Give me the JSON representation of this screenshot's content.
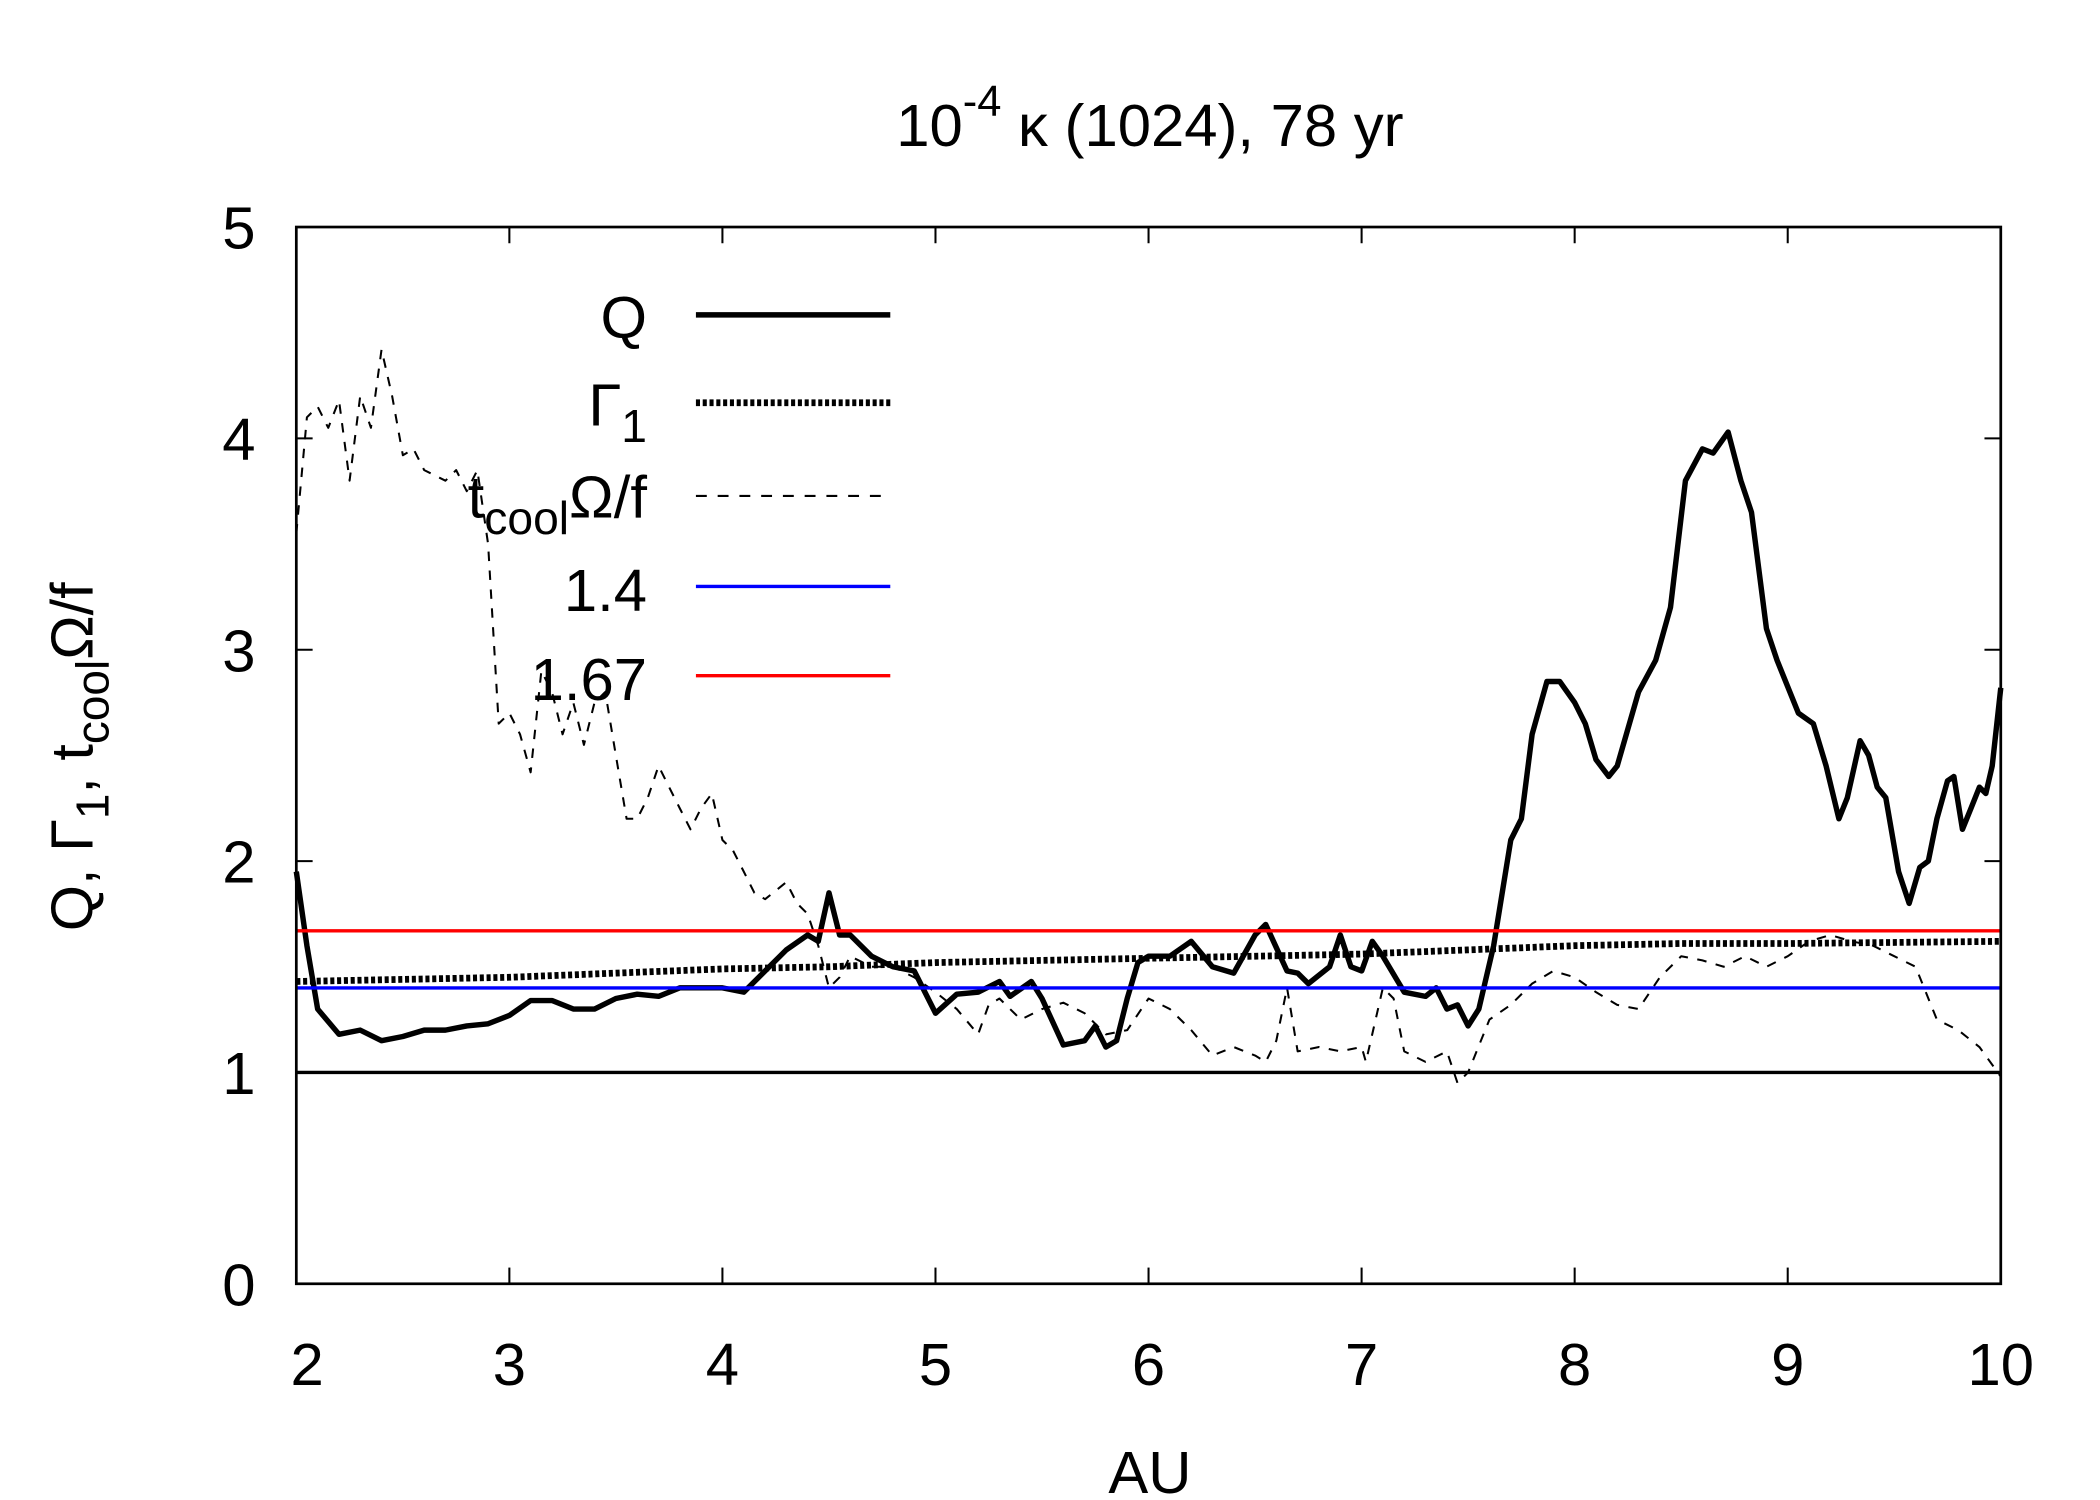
{
  "chart_data": {
    "type": "line",
    "title": {
      "base": "10",
      "sup": "-4",
      "rest": " κ (1024), 78 yr"
    },
    "xlabel": "AU",
    "ylabel": {
      "p1": "Q, Γ",
      "s1": "1",
      "p2": ", t",
      "s2": "cool",
      "p3": "Ω/f"
    },
    "xlim": [
      2,
      10
    ],
    "ylim": [
      0,
      5
    ],
    "xticks": [
      "2",
      "3",
      "4",
      "5",
      "6",
      "7",
      "8",
      "9",
      "10"
    ],
    "yticks": [
      "0",
      "1",
      "2",
      "3",
      "4",
      "5"
    ],
    "grid": false,
    "legend_position": "top-left",
    "legend": [
      {
        "label": "Q"
      },
      {
        "label": "Γ",
        "sub": "1"
      },
      {
        "label": "t",
        "sub": "cool",
        "after": "Ω/f"
      },
      {
        "label": "1.4"
      },
      {
        "label": "1.67"
      }
    ],
    "colors": {
      "Q": "#000000",
      "gamma": "#000000",
      "tcool": "#000000",
      "h14": "#0000ff",
      "h167": "#ff0000",
      "h1": "#000000"
    },
    "series": [
      {
        "name": "Q",
        "style": "solid-thick",
        "x": [
          2,
          2.05,
          2.1,
          2.2,
          2.3,
          2.4,
          2.5,
          2.6,
          2.7,
          2.8,
          2.9,
          3.0,
          3.1,
          3.2,
          3.3,
          3.4,
          3.5,
          3.6,
          3.7,
          3.8,
          3.9,
          4.0,
          4.1,
          4.2,
          4.3,
          4.4,
          4.45,
          4.5,
          4.55,
          4.6,
          4.7,
          4.8,
          4.9,
          5.0,
          5.1,
          5.2,
          5.3,
          5.35,
          5.45,
          5.5,
          5.6,
          5.7,
          5.75,
          5.8,
          5.85,
          5.9,
          5.95,
          6.0,
          6.1,
          6.2,
          6.3,
          6.4,
          6.5,
          6.55,
          6.65,
          6.7,
          6.75,
          6.85,
          6.9,
          6.95,
          7.0,
          7.05,
          7.1,
          7.2,
          7.3,
          7.35,
          7.4,
          7.45,
          7.5,
          7.55,
          7.62,
          7.7,
          7.75,
          7.8,
          7.87,
          7.93,
          8.0,
          8.05,
          8.1,
          8.16,
          8.2,
          8.3,
          8.38,
          8.45,
          8.52,
          8.6,
          8.65,
          8.72,
          8.78,
          8.83,
          8.9,
          8.95,
          9.05,
          9.12,
          9.18,
          9.24,
          9.28,
          9.34,
          9.38,
          9.42,
          9.46,
          9.52,
          9.57,
          9.62,
          9.66,
          9.7,
          9.75,
          9.78,
          9.82,
          9.86,
          9.9,
          9.93,
          9.96,
          10.0
        ],
        "y": [
          1.95,
          1.6,
          1.3,
          1.18,
          1.2,
          1.15,
          1.17,
          1.2,
          1.2,
          1.22,
          1.23,
          1.27,
          1.34,
          1.34,
          1.3,
          1.3,
          1.35,
          1.37,
          1.36,
          1.4,
          1.4,
          1.4,
          1.38,
          1.48,
          1.58,
          1.65,
          1.62,
          1.85,
          1.65,
          1.65,
          1.55,
          1.5,
          1.48,
          1.28,
          1.37,
          1.38,
          1.43,
          1.36,
          1.43,
          1.35,
          1.13,
          1.15,
          1.22,
          1.12,
          1.15,
          1.35,
          1.52,
          1.55,
          1.55,
          1.62,
          1.5,
          1.47,
          1.65,
          1.7,
          1.48,
          1.47,
          1.42,
          1.5,
          1.65,
          1.5,
          1.48,
          1.62,
          1.55,
          1.38,
          1.36,
          1.4,
          1.3,
          1.32,
          1.22,
          1.3,
          1.6,
          2.1,
          2.2,
          2.6,
          2.85,
          2.85,
          2.75,
          2.65,
          2.48,
          2.4,
          2.45,
          2.8,
          2.95,
          3.2,
          3.8,
          3.95,
          3.93,
          4.03,
          3.8,
          3.65,
          3.1,
          2.95,
          2.7,
          2.65,
          2.45,
          2.2,
          2.3,
          2.57,
          2.5,
          2.35,
          2.3,
          1.95,
          1.8,
          1.97,
          2.0,
          2.2,
          2.38,
          2.4,
          2.15,
          2.25,
          2.35,
          2.32,
          2.45,
          2.82
        ]
      },
      {
        "name": "Gamma1",
        "style": "dotted-thick",
        "x": [
          2,
          3,
          4,
          4.5,
          5,
          6,
          6.5,
          7,
          7.5,
          8,
          8.5,
          9,
          10
        ],
        "y": [
          1.43,
          1.45,
          1.49,
          1.5,
          1.52,
          1.54,
          1.55,
          1.56,
          1.58,
          1.6,
          1.61,
          1.61,
          1.62
        ]
      },
      {
        "name": "tcoolOmega/f",
        "style": "dashed-thin",
        "x": [
          2,
          2.05,
          2.1,
          2.15,
          2.2,
          2.25,
          2.3,
          2.35,
          2.4,
          2.45,
          2.5,
          2.55,
          2.6,
          2.7,
          2.75,
          2.8,
          2.85,
          2.9,
          2.95,
          3.0,
          3.05,
          3.1,
          3.15,
          3.2,
          3.25,
          3.3,
          3.35,
          3.4,
          3.45,
          3.5,
          3.55,
          3.6,
          3.65,
          3.7,
          3.75,
          3.8,
          3.85,
          3.9,
          3.95,
          4.0,
          4.05,
          4.1,
          4.15,
          4.2,
          4.3,
          4.35,
          4.4,
          4.45,
          4.5,
          4.55,
          4.6,
          4.7,
          4.8,
          4.9,
          5.0,
          5.1,
          5.2,
          5.25,
          5.3,
          5.4,
          5.5,
          5.6,
          5.7,
          5.8,
          5.9,
          6.0,
          6.1,
          6.2,
          6.3,
          6.4,
          6.5,
          6.55,
          6.6,
          6.65,
          6.7,
          6.8,
          6.9,
          7.0,
          7.02,
          7.1,
          7.15,
          7.2,
          7.3,
          7.4,
          7.45,
          7.5,
          7.6,
          7.7,
          7.8,
          7.9,
          8.0,
          8.1,
          8.2,
          8.3,
          8.4,
          8.5,
          8.6,
          8.7,
          8.8,
          8.9,
          9.0,
          9.1,
          9.2,
          9.3,
          9.4,
          9.5,
          9.6,
          9.7,
          9.8,
          9.9,
          10
        ],
        "y": [
          3.55,
          4.1,
          4.15,
          4.05,
          4.18,
          3.8,
          4.2,
          4.05,
          4.42,
          4.2,
          3.92,
          3.95,
          3.85,
          3.8,
          3.85,
          3.75,
          3.85,
          3.5,
          2.65,
          2.7,
          2.6,
          2.42,
          2.9,
          2.8,
          2.6,
          2.75,
          2.55,
          2.75,
          2.8,
          2.5,
          2.2,
          2.2,
          2.3,
          2.45,
          2.35,
          2.25,
          2.15,
          2.25,
          2.32,
          2.1,
          2.05,
          1.95,
          1.85,
          1.82,
          1.9,
          1.8,
          1.75,
          1.6,
          1.4,
          1.45,
          1.55,
          1.5,
          1.5,
          1.45,
          1.38,
          1.3,
          1.18,
          1.32,
          1.35,
          1.25,
          1.3,
          1.33,
          1.28,
          1.18,
          1.2,
          1.35,
          1.3,
          1.2,
          1.08,
          1.12,
          1.08,
          1.05,
          1.15,
          1.4,
          1.1,
          1.12,
          1.1,
          1.12,
          1.05,
          1.4,
          1.35,
          1.1,
          1.05,
          1.1,
          0.95,
          1.0,
          1.25,
          1.32,
          1.42,
          1.48,
          1.45,
          1.38,
          1.32,
          1.3,
          1.45,
          1.55,
          1.53,
          1.5,
          1.55,
          1.5,
          1.55,
          1.62,
          1.65,
          1.62,
          1.6,
          1.55,
          1.5,
          1.25,
          1.2,
          1.12,
          0.98
        ]
      },
      {
        "name": "1.4",
        "style": "hline",
        "value": 1.4
      },
      {
        "name": "1.67",
        "style": "hline",
        "value": 1.67
      },
      {
        "name": "Q=1",
        "style": "hline",
        "value": 1.0
      }
    ]
  }
}
